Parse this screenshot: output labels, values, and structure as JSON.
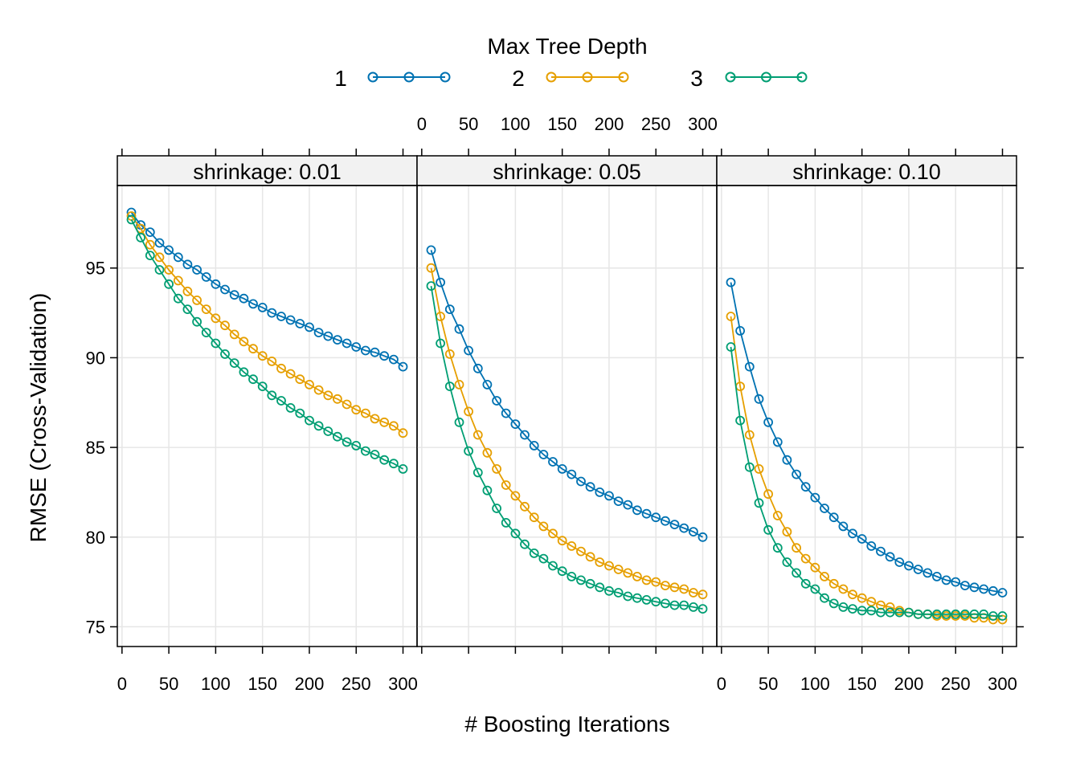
{
  "legend": {
    "title": "Max Tree Depth",
    "entries": [
      {
        "key": "1",
        "color": "#0072B2"
      },
      {
        "key": "2",
        "color": "#E69F00"
      },
      {
        "key": "3",
        "color": "#009E73"
      }
    ]
  },
  "chart_data": {
    "type": "line",
    "xlabel": "# Boosting Iterations",
    "ylabel": "RMSE (Cross-Validation)",
    "xlim": [
      -5,
      315
    ],
    "ylim": [
      73.9,
      99.6
    ],
    "x_ticks": [
      0,
      50,
      100,
      150,
      200,
      250,
      300
    ],
    "y_ticks": [
      75,
      80,
      85,
      90,
      95
    ],
    "grid": true,
    "legend_position": "top",
    "x": [
      10,
      20,
      30,
      40,
      50,
      60,
      70,
      80,
      90,
      100,
      110,
      120,
      130,
      140,
      150,
      160,
      170,
      180,
      190,
      200,
      210,
      220,
      230,
      240,
      250,
      260,
      270,
      280,
      290,
      300
    ],
    "panels": [
      {
        "strip": "shrinkage: 0.01",
        "series": [
          {
            "name": "1",
            "color": "#0072B2",
            "values": [
              98.1,
              97.4,
              97.0,
              96.4,
              96.0,
              95.6,
              95.2,
              94.9,
              94.5,
              94.1,
              93.8,
              93.5,
              93.3,
              93.0,
              92.8,
              92.5,
              92.3,
              92.1,
              91.9,
              91.7,
              91.4,
              91.2,
              91.0,
              90.8,
              90.6,
              90.4,
              90.3,
              90.1,
              89.9,
              89.5
            ]
          },
          {
            "name": "2",
            "color": "#E69F00",
            "values": [
              97.9,
              97.2,
              96.3,
              95.6,
              94.9,
              94.3,
              93.7,
              93.2,
              92.7,
              92.2,
              91.8,
              91.3,
              90.9,
              90.5,
              90.1,
              89.8,
              89.4,
              89.1,
              88.8,
              88.5,
              88.2,
              87.9,
              87.7,
              87.4,
              87.1,
              86.9,
              86.6,
              86.4,
              86.2,
              85.8
            ]
          },
          {
            "name": "3",
            "color": "#009E73",
            "values": [
              97.7,
              96.7,
              95.7,
              94.9,
              94.1,
              93.3,
              92.7,
              92.0,
              91.4,
              90.8,
              90.2,
              89.7,
              89.2,
              88.8,
              88.4,
              87.9,
              87.6,
              87.2,
              86.9,
              86.5,
              86.2,
              85.9,
              85.6,
              85.3,
              85.1,
              84.8,
              84.6,
              84.3,
              84.1,
              83.8
            ]
          }
        ]
      },
      {
        "strip": "shrinkage: 0.05",
        "series": [
          {
            "name": "1",
            "color": "#0072B2",
            "values": [
              96.0,
              94.2,
              92.7,
              91.6,
              90.4,
              89.4,
              88.5,
              87.6,
              86.9,
              86.3,
              85.7,
              85.1,
              84.6,
              84.2,
              83.8,
              83.5,
              83.1,
              82.8,
              82.5,
              82.3,
              82.0,
              81.8,
              81.5,
              81.3,
              81.1,
              80.9,
              80.7,
              80.5,
              80.3,
              80.0
            ]
          },
          {
            "name": "2",
            "color": "#E69F00",
            "values": [
              95.0,
              92.3,
              90.2,
              88.5,
              87.0,
              85.7,
              84.7,
              83.8,
              82.9,
              82.3,
              81.7,
              81.1,
              80.6,
              80.2,
              79.8,
              79.5,
              79.2,
              78.9,
              78.6,
              78.4,
              78.2,
              78.0,
              77.8,
              77.6,
              77.5,
              77.3,
              77.2,
              77.1,
              76.9,
              76.8
            ]
          },
          {
            "name": "3",
            "color": "#009E73",
            "values": [
              94.0,
              90.8,
              88.4,
              86.4,
              84.8,
              83.6,
              82.6,
              81.6,
              80.8,
              80.2,
              79.6,
              79.1,
              78.8,
              78.4,
              78.1,
              77.8,
              77.6,
              77.4,
              77.2,
              77.0,
              76.9,
              76.7,
              76.6,
              76.5,
              76.4,
              76.3,
              76.2,
              76.2,
              76.1,
              76.0
            ]
          }
        ]
      },
      {
        "strip": "shrinkage: 0.10",
        "series": [
          {
            "name": "1",
            "color": "#0072B2",
            "values": [
              94.2,
              91.5,
              89.5,
              87.7,
              86.4,
              85.3,
              84.3,
              83.5,
              82.8,
              82.2,
              81.6,
              81.1,
              80.6,
              80.2,
              79.9,
              79.5,
              79.2,
              78.9,
              78.6,
              78.4,
              78.2,
              78.0,
              77.8,
              77.6,
              77.5,
              77.3,
              77.2,
              77.1,
              77.0,
              76.9
            ]
          },
          {
            "name": "2",
            "color": "#E69F00",
            "values": [
              92.3,
              88.4,
              85.7,
              83.8,
              82.4,
              81.2,
              80.3,
              79.4,
              78.8,
              78.3,
              77.8,
              77.4,
              77.1,
              76.8,
              76.6,
              76.4,
              76.2,
              76.1,
              75.9,
              75.8,
              75.7,
              75.7,
              75.6,
              75.6,
              75.6,
              75.6,
              75.5,
              75.5,
              75.4,
              75.4
            ]
          },
          {
            "name": "3",
            "color": "#009E73",
            "values": [
              90.6,
              86.5,
              83.9,
              81.9,
              80.4,
              79.4,
              78.6,
              78.0,
              77.4,
              77.1,
              76.6,
              76.3,
              76.1,
              76.0,
              75.9,
              75.9,
              75.8,
              75.8,
              75.8,
              75.8,
              75.7,
              75.7,
              75.7,
              75.7,
              75.7,
              75.7,
              75.7,
              75.7,
              75.6,
              75.6
            ]
          }
        ]
      }
    ]
  }
}
